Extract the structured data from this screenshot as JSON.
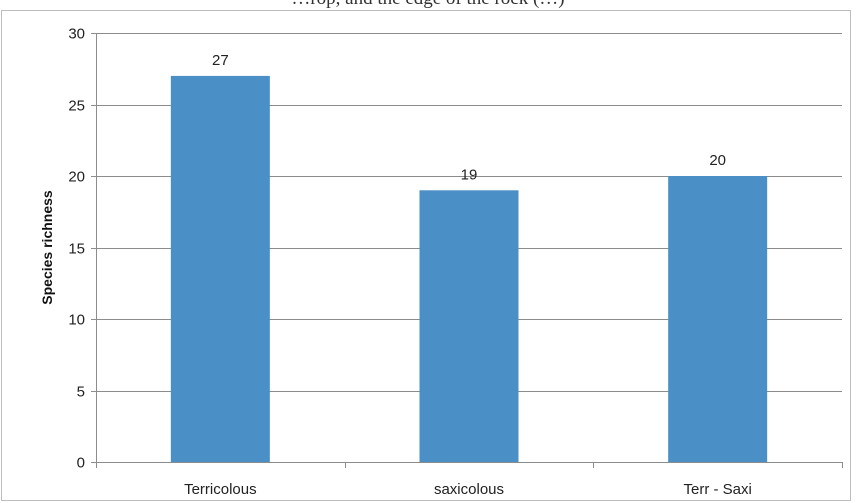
{
  "top_caption": "…rop, and the edge of the rock (…)",
  "chart_data": {
    "type": "bar",
    "categories": [
      "Terricolous",
      "saxicolous",
      "Terr - Saxi"
    ],
    "values": [
      27,
      19,
      20
    ],
    "data_labels": [
      "27",
      "19",
      "20"
    ],
    "title": "",
    "xlabel": "",
    "ylabel": "Species richness",
    "ylim": [
      0,
      30
    ],
    "yticks": [
      0,
      5,
      10,
      15,
      20,
      25,
      30
    ],
    "grid": true,
    "legend": "none",
    "bar_color": "#4a8fc6",
    "grid_color": "#8c8c8c",
    "axis_color": "#8c8c8c"
  }
}
